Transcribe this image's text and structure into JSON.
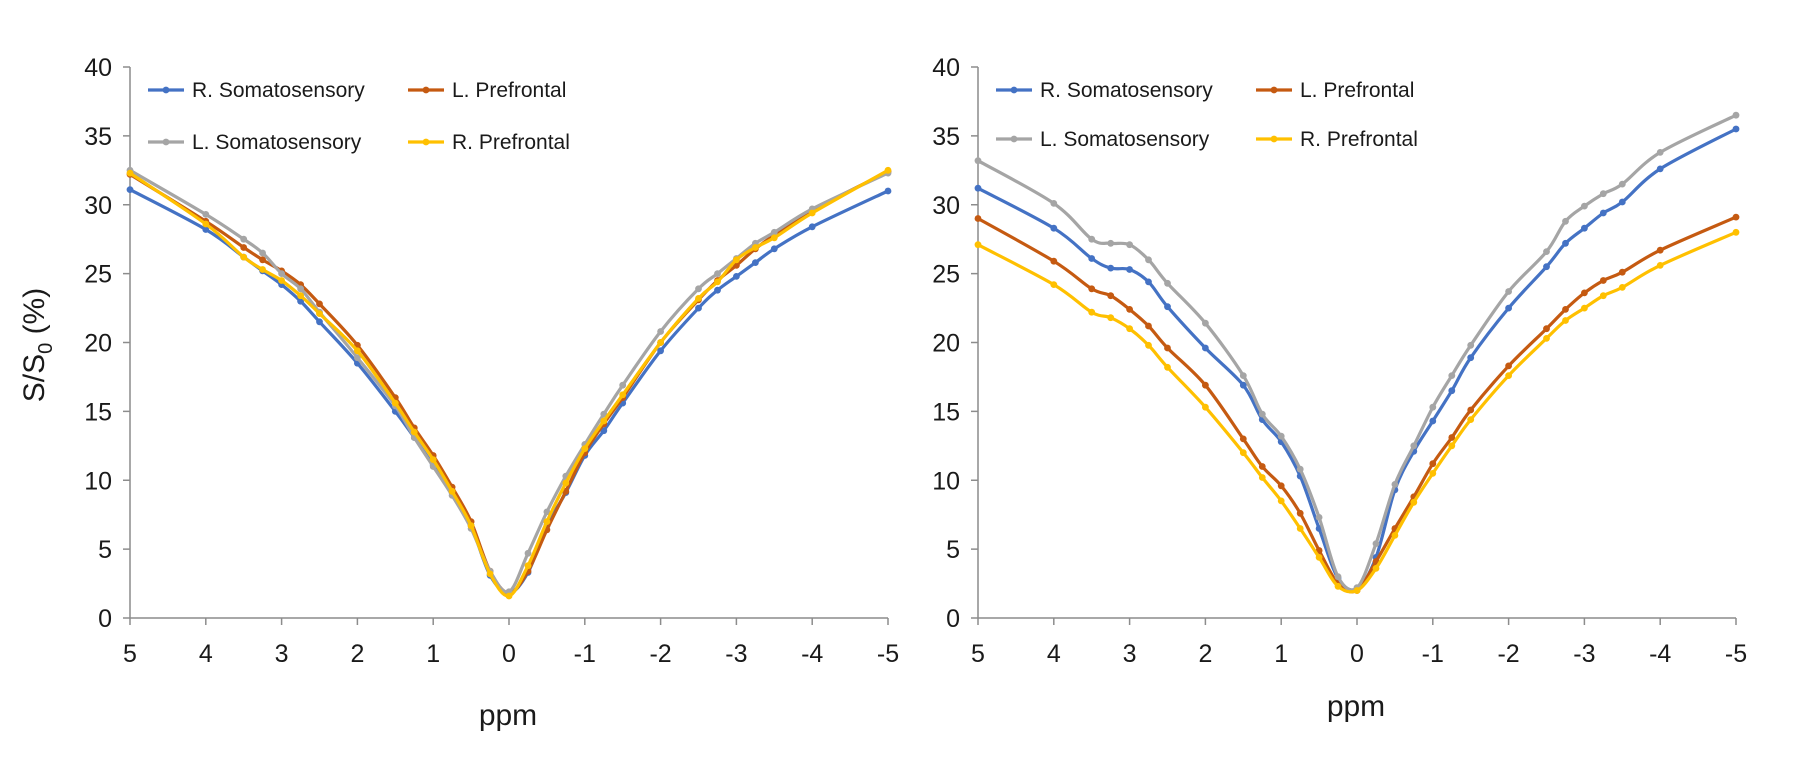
{
  "figure": {
    "charts": [
      {
        "ylabel_main": "S/S",
        "ylabel_sub": "0",
        "ylabel_tail": " (%)",
        "xlabel": "ppm"
      },
      {
        "xlabel": "ppm"
      }
    ]
  },
  "colors": {
    "R. Somatosensory": "#4472c4",
    "L. Prefrontal": "#c55a11",
    "L. Somatosensory": "#a5a5a5",
    "R. Prefrontal": "#ffc000",
    "axis": "#8c8c8c"
  },
  "chart_data": [
    {
      "type": "line",
      "title": "",
      "xlabel": "ppm",
      "ylabel": "S/S0 (%)",
      "xlim": [
        5,
        -5
      ],
      "ylim": [
        0,
        40
      ],
      "x_ticks": [
        5,
        4,
        3,
        2,
        1,
        0,
        -1,
        -2,
        -3,
        -4,
        -5
      ],
      "y_ticks": [
        0,
        5,
        10,
        15,
        20,
        25,
        30,
        35,
        40
      ],
      "legend": {
        "position": "top",
        "columns": 2
      },
      "series": [
        {
          "name": "R. Somatosensory",
          "color": "#4472c4",
          "x": [
            5,
            4,
            3.5,
            3.25,
            3,
            2.75,
            2.5,
            2,
            1.5,
            1.25,
            1,
            0.75,
            0.5,
            0.25,
            0,
            -0.25,
            -0.5,
            -0.75,
            -1,
            -1.25,
            -1.5,
            -2,
            -2.5,
            -2.75,
            -3,
            -3.25,
            -3.5,
            -4,
            -5
          ],
          "y": [
            31.1,
            28.2,
            26.2,
            25.2,
            24.2,
            23.0,
            21.5,
            18.5,
            15.0,
            13.1,
            11.1,
            9.1,
            6.7,
            3.1,
            1.8,
            3.3,
            6.7,
            9.1,
            11.8,
            13.6,
            15.6,
            19.4,
            22.5,
            23.8,
            24.8,
            25.8,
            26.8,
            28.4,
            31.0
          ]
        },
        {
          "name": "L. Prefrontal",
          "color": "#c55a11",
          "x": [
            5,
            4,
            3.5,
            3.25,
            3,
            2.75,
            2.5,
            2,
            1.5,
            1.25,
            1,
            0.75,
            0.5,
            0.25,
            0,
            -0.25,
            -0.5,
            -0.75,
            -1,
            -1.25,
            -1.5,
            -2,
            -2.5,
            -2.75,
            -3,
            -3.25,
            -3.5,
            -4,
            -5
          ],
          "y": [
            32.2,
            28.8,
            26.9,
            26.0,
            25.2,
            24.2,
            22.8,
            19.8,
            16.0,
            13.8,
            11.8,
            9.5,
            7.0,
            3.4,
            1.8,
            3.4,
            6.4,
            9.2,
            12.0,
            14.1,
            16.0,
            20.0,
            23.1,
            24.5,
            25.6,
            26.8,
            27.8,
            29.6,
            32.4
          ]
        },
        {
          "name": "L. Somatosensory",
          "color": "#a5a5a5",
          "x": [
            5,
            4,
            3.5,
            3.25,
            3,
            2.75,
            2.5,
            2,
            1.5,
            1.25,
            1,
            0.75,
            0.5,
            0.25,
            0,
            -0.25,
            -0.5,
            -0.75,
            -1,
            -1.25,
            -1.5,
            -2,
            -2.5,
            -2.75,
            -3,
            -3.25,
            -3.5,
            -4,
            -5
          ],
          "y": [
            32.5,
            29.3,
            27.5,
            26.5,
            25.0,
            23.9,
            22.2,
            18.9,
            15.4,
            13.1,
            11.0,
            8.9,
            6.5,
            3.4,
            1.9,
            4.7,
            7.7,
            10.3,
            12.6,
            14.8,
            16.9,
            20.8,
            23.9,
            25.0,
            26.1,
            27.2,
            28.0,
            29.7,
            32.3
          ]
        },
        {
          "name": "R. Prefrontal",
          "color": "#ffc000",
          "x": [
            5,
            4,
            3.5,
            3.25,
            3,
            2.75,
            2.5,
            2,
            1.5,
            1.25,
            1,
            0.75,
            0.5,
            0.25,
            0,
            -0.25,
            -0.5,
            -0.75,
            -1,
            -1.25,
            -1.5,
            -2,
            -2.5,
            -2.75,
            -3,
            -3.25,
            -3.5,
            -4,
            -5
          ],
          "y": [
            32.3,
            28.6,
            26.2,
            25.3,
            24.5,
            23.4,
            22.1,
            19.4,
            15.6,
            13.5,
            11.5,
            9.2,
            6.7,
            3.2,
            1.6,
            3.8,
            7.0,
            9.8,
            12.3,
            14.3,
            16.2,
            20.0,
            23.2,
            24.4,
            26.0,
            26.9,
            27.6,
            29.4,
            32.5
          ]
        }
      ]
    },
    {
      "type": "line",
      "title": "",
      "xlabel": "ppm",
      "ylabel": "",
      "xlim": [
        5,
        -5
      ],
      "ylim": [
        0,
        40
      ],
      "x_ticks": [
        5,
        4,
        3,
        2,
        1,
        0,
        -1,
        -2,
        -3,
        -4,
        -5
      ],
      "y_ticks": [
        0,
        5,
        10,
        15,
        20,
        25,
        30,
        35,
        40
      ],
      "legend": {
        "position": "top",
        "columns": 2
      },
      "series": [
        {
          "name": "R. Somatosensory",
          "color": "#4472c4",
          "x": [
            5,
            4,
            3.5,
            3.25,
            3,
            2.75,
            2.5,
            2,
            1.5,
            1.25,
            1,
            0.75,
            0.5,
            0.25,
            0,
            -0.25,
            -0.5,
            -0.75,
            -1,
            -1.25,
            -1.5,
            -2,
            -2.5,
            -2.75,
            -3,
            -3.25,
            -3.5,
            -4,
            -5
          ],
          "y": [
            31.2,
            28.3,
            26.1,
            25.4,
            25.3,
            24.4,
            22.6,
            19.6,
            16.9,
            14.4,
            12.8,
            10.3,
            6.5,
            2.9,
            2.1,
            4.4,
            9.3,
            12.1,
            14.3,
            16.5,
            18.9,
            22.5,
            25.5,
            27.2,
            28.3,
            29.4,
            30.2,
            32.6,
            35.5
          ]
        },
        {
          "name": "L. Prefrontal",
          "color": "#c55a11",
          "x": [
            5,
            4,
            3.5,
            3.25,
            3,
            2.75,
            2.5,
            2,
            1.5,
            1.25,
            1,
            0.75,
            0.5,
            0.25,
            0,
            -0.25,
            -0.5,
            -0.75,
            -1,
            -1.25,
            -1.5,
            -2,
            -2.5,
            -2.75,
            -3,
            -3.25,
            -3.5,
            -4,
            -5
          ],
          "y": [
            29.0,
            25.9,
            23.9,
            23.4,
            22.4,
            21.2,
            19.6,
            16.9,
            13.0,
            11.0,
            9.6,
            7.6,
            4.9,
            2.5,
            2.0,
            4.1,
            6.5,
            8.8,
            11.2,
            13.1,
            15.1,
            18.3,
            21.0,
            22.4,
            23.6,
            24.5,
            25.1,
            26.7,
            29.1
          ]
        },
        {
          "name": "L. Somatosensory",
          "color": "#a5a5a5",
          "x": [
            5,
            4,
            3.5,
            3.25,
            3,
            2.75,
            2.5,
            2,
            1.5,
            1.25,
            1,
            0.75,
            0.5,
            0.25,
            0,
            -0.25,
            -0.5,
            -0.75,
            -1,
            -1.25,
            -1.5,
            -2,
            -2.5,
            -2.75,
            -3,
            -3.25,
            -3.5,
            -4,
            -5
          ],
          "y": [
            33.2,
            30.1,
            27.5,
            27.2,
            27.1,
            26.0,
            24.3,
            21.4,
            17.6,
            14.8,
            13.2,
            10.8,
            7.3,
            3.0,
            2.2,
            5.4,
            9.7,
            12.5,
            15.3,
            17.6,
            19.8,
            23.7,
            26.6,
            28.8,
            29.9,
            30.8,
            31.5,
            33.8,
            36.5
          ]
        },
        {
          "name": "R. Prefrontal",
          "color": "#ffc000",
          "x": [
            5,
            4,
            3.5,
            3.25,
            3,
            2.75,
            2.5,
            2,
            1.5,
            1.25,
            1,
            0.75,
            0.5,
            0.25,
            0,
            -0.25,
            -0.5,
            -0.75,
            -1,
            -1.25,
            -1.5,
            -2,
            -2.5,
            -2.75,
            -3,
            -3.25,
            -3.5,
            -4,
            -5
          ],
          "y": [
            27.1,
            24.2,
            22.2,
            21.8,
            21.0,
            19.8,
            18.2,
            15.3,
            12.0,
            10.2,
            8.5,
            6.5,
            4.4,
            2.3,
            2.0,
            3.6,
            6.0,
            8.4,
            10.5,
            12.5,
            14.4,
            17.6,
            20.3,
            21.6,
            22.5,
            23.4,
            24.0,
            25.6,
            28.0
          ]
        }
      ]
    }
  ]
}
